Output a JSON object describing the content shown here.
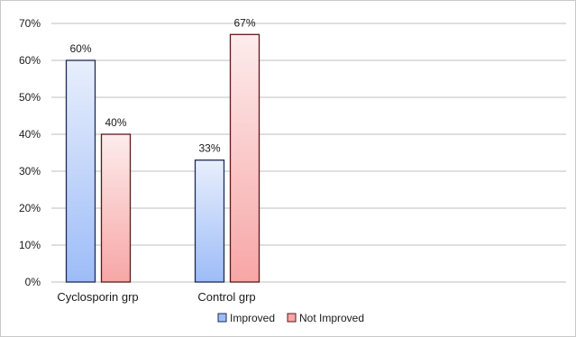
{
  "chart_data": {
    "type": "bar",
    "categories": [
      "Cyclosporin grp",
      "Control grp"
    ],
    "series": [
      {
        "name": "Improved",
        "values": [
          60,
          33
        ],
        "labels": [
          "60%",
          "33%"
        ]
      },
      {
        "name": "Not Improved",
        "values": [
          40,
          67
        ],
        "labels": [
          "40%",
          "67%"
        ]
      }
    ],
    "ylim": [
      0,
      70
    ],
    "yticks": [
      "0%",
      "10%",
      "20%",
      "30%",
      "40%",
      "50%",
      "60%",
      "70%"
    ],
    "title": "",
    "xlabel": "",
    "ylabel": "",
    "grid": true,
    "legend_position": "bottom",
    "colors": {
      "improved_fill_top": "#e8effc",
      "improved_fill_bottom": "#9dbcf8",
      "improved_stroke": "#1f2a55",
      "not_improved_fill_top": "#fdecec",
      "not_improved_fill_bottom": "#f7a6a6",
      "not_improved_stroke": "#5a1a1a",
      "gridline": "#bfbfbf"
    }
  }
}
